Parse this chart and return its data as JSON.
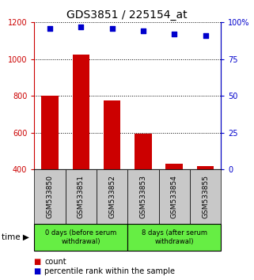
{
  "title": "GDS3851 / 225154_at",
  "samples": [
    "GSM533850",
    "GSM533851",
    "GSM533852",
    "GSM533853",
    "GSM533854",
    "GSM533855"
  ],
  "counts": [
    800,
    1025,
    775,
    595,
    430,
    420
  ],
  "percentiles": [
    96,
    97,
    96,
    94,
    92,
    91
  ],
  "ylim_left": [
    400,
    1200
  ],
  "ylim_right": [
    0,
    100
  ],
  "yticks_left": [
    400,
    600,
    800,
    1000,
    1200
  ],
  "yticks_right": [
    0,
    25,
    50,
    75,
    100
  ],
  "bar_color": "#CC0000",
  "scatter_color": "#0000CC",
  "sample_bg_color": "#C8C8C8",
  "group_bg_color": "#66EE44",
  "group1_label": "0 days (before serum\nwithdrawal)",
  "group2_label": "8 days (after serum\nwithdrawal)",
  "legend_count_label": "count",
  "legend_pct_label": "percentile rank within the sample",
  "title_fontsize": 10,
  "tick_fontsize": 7,
  "label_fontsize": 6.5,
  "group_fontsize": 6,
  "legend_fontsize": 7
}
